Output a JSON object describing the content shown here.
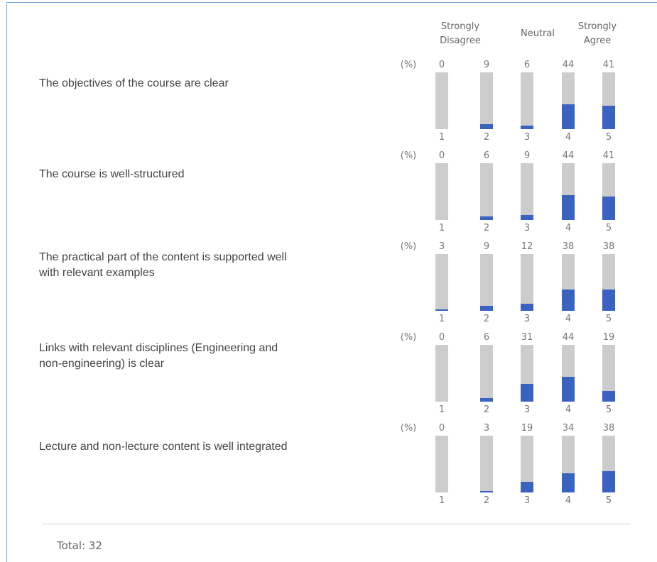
{
  "header": [
    [
      "Strongly",
      "Disagree"
    ],
    [
      "Neutral"
    ],
    [
      "Strongly",
      "Agree"
    ]
  ],
  "unit": "(%)",
  "scale": [
    "1",
    "2",
    "3",
    "4",
    "5"
  ],
  "items": [
    {
      "label": [
        "The objectives of the course are clear"
      ],
      "values": [
        0,
        9,
        6,
        44,
        41
      ]
    },
    {
      "label": [
        "The course is well-structured"
      ],
      "values": [
        0,
        6,
        9,
        44,
        41
      ]
    },
    {
      "label": [
        "The practical part of the content is supported well",
        "with relevant examples"
      ],
      "values": [
        3,
        9,
        12,
        38,
        38
      ]
    },
    {
      "label": [
        "Links with relevant disciplines (Engineering and",
        "non-engineering) is clear"
      ],
      "values": [
        0,
        6,
        31,
        44,
        19
      ]
    },
    {
      "label": [
        "Lecture and non-lecture content is well integrated"
      ],
      "values": [
        0,
        3,
        19,
        34,
        38
      ]
    }
  ],
  "total": "Total: 32"
}
